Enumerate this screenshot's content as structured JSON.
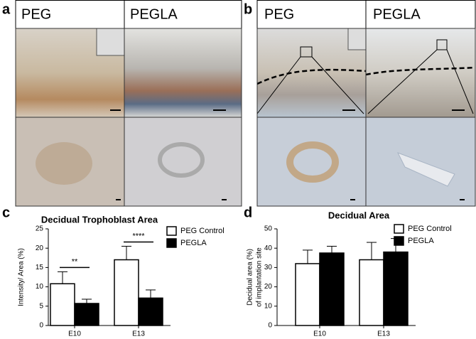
{
  "panels": [
    {
      "label": "a",
      "columns": [
        "PEG",
        "PEGLA"
      ]
    },
    {
      "label": "b",
      "columns": [
        "PEG",
        "PEGLA"
      ]
    }
  ],
  "chart_data": [
    {
      "type": "bar",
      "panel_label": "c",
      "title": "Decidual Trophoblast Area",
      "ylabel": [
        "Intensity/ Area (%)"
      ],
      "categories": [
        "E10",
        "E13"
      ],
      "series": [
        {
          "name": "PEG Control",
          "color": "#ffffff",
          "values": [
            10.8,
            17
          ],
          "errors": [
            3.1,
            3.5
          ]
        },
        {
          "name": "PEGLA",
          "color": "#000000",
          "values": [
            5.7,
            7.1
          ],
          "errors": [
            1.1,
            2.1
          ]
        }
      ],
      "annotations": [
        "**",
        "****"
      ],
      "ylim": [
        0,
        25
      ],
      "yticks": [
        0,
        5,
        10,
        15,
        20,
        25
      ]
    },
    {
      "type": "bar",
      "panel_label": "d",
      "title": "Decidual Area",
      "ylabel": [
        "Decidual area (%)",
        "of implantation site"
      ],
      "categories": [
        "E10",
        "E13"
      ],
      "series": [
        {
          "name": "PEG Control",
          "color": "#ffffff",
          "values": [
            32,
            34
          ],
          "errors": [
            7,
            9
          ]
        },
        {
          "name": "PEGLA",
          "color": "#000000",
          "values": [
            37.5,
            38
          ],
          "errors": [
            3.5,
            7
          ]
        }
      ],
      "ylim": [
        0,
        50
      ],
      "yticks": [
        0,
        10,
        20,
        30,
        40,
        50
      ]
    }
  ]
}
